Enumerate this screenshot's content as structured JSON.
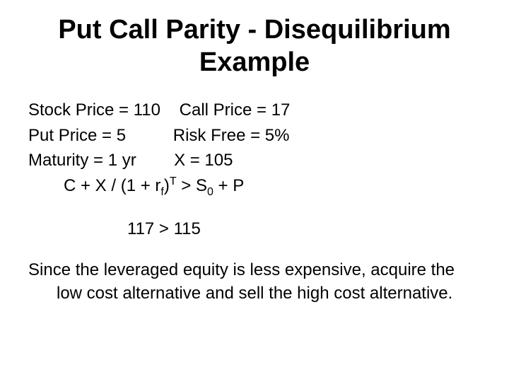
{
  "title": "Put Call Parity - Disequilibrium Example",
  "params": {
    "stock_price_label": "Stock Price = 110",
    "call_price_label": "Call Price = 17",
    "put_price_label": "Put Price = 5",
    "risk_free_label": "Risk Free = 5%",
    "maturity_label": "Maturity = 1 yr",
    "strike_label": "X = 105"
  },
  "formula": {
    "lhs1": "C + X / (1 + r",
    "sub1": "f",
    "mid1": ")",
    "sup1": "T",
    "mid2": " > S",
    "sub2": "0",
    "rhs": " + P"
  },
  "result": "117 > 115",
  "conclusion": "Since the leveraged equity is less expensive, acquire the low cost alternative and sell the high cost alternative.",
  "layout": {
    "title_fontsize": 38,
    "body_fontsize": 24,
    "background_color": "#ffffff",
    "text_color": "#000000"
  }
}
